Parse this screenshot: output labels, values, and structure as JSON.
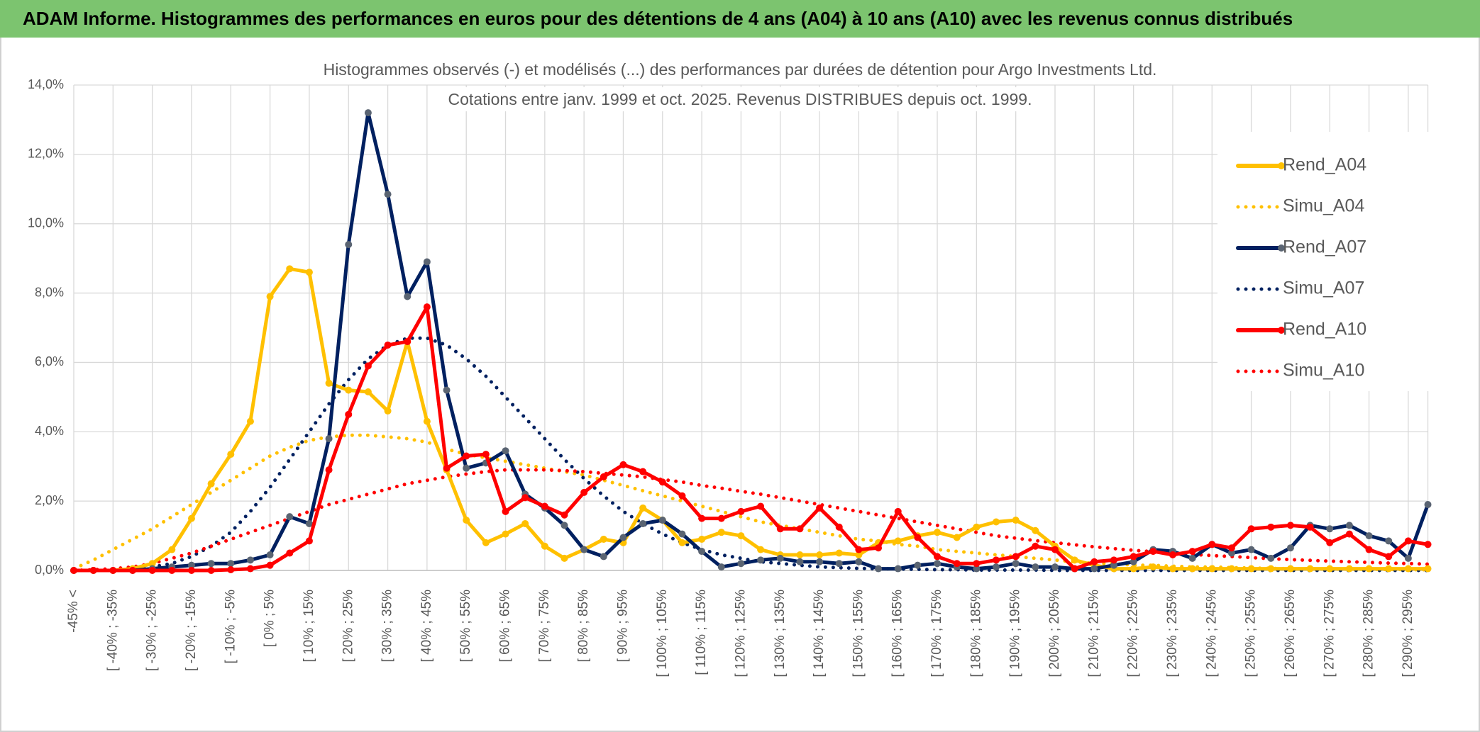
{
  "header": "ADAM Informe. Histogrammes des performances en euros pour des détentions de 4 ans (A04) à 10 ans (A10) avec les revenus connus distribués",
  "chart_data": {
    "type": "line",
    "title": "Histogrammes observés (-) et modélisés (...) des performances par durées de détention pour Argo Investments Ltd.",
    "subtitle": "Cotations entre janv. 1999 et oct. 2025. Revenus DISTRIBUES depuis oct. 1999.",
    "categories": [
      "-45% <",
      null,
      "[ -40% ; -35%",
      null,
      "[ -30% ; -25%",
      null,
      "[ -20% ; -15%",
      null,
      "[ -10% ; -5%",
      null,
      "[ 0% ; 5%",
      null,
      "[ 10% ; 15%",
      null,
      "[ 20% ; 25%",
      null,
      "[ 30% ; 35%",
      null,
      "[ 40% ; 45%",
      null,
      "[ 50% ; 55%",
      null,
      "[ 60% ; 65%",
      null,
      "[ 70% ; 75%",
      null,
      "[ 80% ; 85%",
      null,
      "[ 90% ; 95%",
      null,
      "[ 100% ; 105%",
      null,
      "[ 110% ; 115%",
      null,
      "[ 120% ; 125%",
      null,
      "[ 130% ; 135%",
      null,
      "[ 140% ; 145%",
      null,
      "[ 150% ; 155%",
      null,
      "[ 160% ; 165%",
      null,
      "[ 170% ; 175%",
      null,
      "[ 180% ; 185%",
      null,
      "[ 190% ; 195%",
      null,
      "[ 200% ; 205%",
      null,
      "[ 210% ; 215%",
      null,
      "[ 220% ; 225%",
      null,
      "[ 230% ; 235%",
      null,
      "[ 240% ; 245%",
      null,
      "[ 250% ; 255%",
      null,
      "[ 260% ; 265%",
      null,
      "[ 270% ; 275%",
      null,
      "[ 280% ; 285%",
      null,
      "[ 290% ; 295%",
      null
    ],
    "series": [
      {
        "name": "Rend_A04",
        "color": "#FFC000",
        "style": "solid",
        "marker_color": "#FFC000",
        "values": [
          0,
          0,
          0,
          0.05,
          0.2,
          0.6,
          1.5,
          2.5,
          3.35,
          4.3,
          7.9,
          8.7,
          8.6,
          5.4,
          5.2,
          5.15,
          4.6,
          6.6,
          4.3,
          2.9,
          1.45,
          0.8,
          1.05,
          1.35,
          0.7,
          0.35,
          0.6,
          0.9,
          0.8,
          1.8,
          1.45,
          0.8,
          0.9,
          1.1,
          1.0,
          0.6,
          0.45,
          0.45,
          0.45,
          0.5,
          0.45,
          0.8,
          0.85,
          1.0,
          1.1,
          0.95,
          1.25,
          1.4,
          1.45,
          1.15,
          0.7,
          0.3,
          0.15,
          0.05,
          0.05,
          0.1,
          0.05,
          0.05,
          0.05,
          0.05,
          0.05,
          0.05,
          0.05,
          0.05,
          0.05,
          0.05,
          0.05,
          0.05,
          0.05,
          0.05
        ]
      },
      {
        "name": "Simu_A04",
        "color": "#FFC000",
        "style": "dotted",
        "values": [
          0.05,
          0.3,
          0.6,
          0.9,
          1.2,
          1.55,
          1.9,
          2.25,
          2.6,
          2.95,
          3.3,
          3.55,
          3.75,
          3.85,
          3.9,
          3.9,
          3.85,
          3.8,
          3.7,
          3.5,
          3.35,
          3.25,
          3.15,
          3.05,
          2.95,
          2.85,
          2.75,
          2.6,
          2.45,
          2.3,
          2.15,
          2.0,
          1.85,
          1.7,
          1.55,
          1.4,
          1.3,
          1.2,
          1.1,
          1.0,
          0.9,
          0.85,
          0.75,
          0.7,
          0.6,
          0.55,
          0.5,
          0.45,
          0.4,
          0.35,
          0.3,
          0.25,
          0.2,
          0.2,
          0.15,
          0.15,
          0.12,
          0.1,
          0.1,
          0.08,
          0.07,
          0.06,
          0.05,
          0.05,
          0.04,
          0.04,
          0.03,
          0.03,
          0.02,
          0.02
        ]
      },
      {
        "name": "Rend_A07",
        "color": "#002060",
        "style": "solid",
        "marker_color": "#5A6472",
        "values": [
          0,
          0,
          0,
          0,
          0.05,
          0.1,
          0.15,
          0.2,
          0.2,
          0.3,
          0.45,
          1.55,
          1.35,
          3.8,
          9.4,
          13.2,
          10.85,
          7.9,
          8.9,
          5.2,
          2.95,
          3.1,
          3.45,
          2.2,
          1.8,
          1.3,
          0.6,
          0.4,
          0.95,
          1.35,
          1.45,
          1.05,
          0.55,
          0.1,
          0.2,
          0.3,
          0.35,
          0.25,
          0.25,
          0.2,
          0.25,
          0.05,
          0.05,
          0.15,
          0.2,
          0.1,
          0.05,
          0.1,
          0.2,
          0.1,
          0.1,
          0.05,
          0.05,
          0.15,
          0.25,
          0.6,
          0.55,
          0.35,
          0.75,
          0.5,
          0.6,
          0.35,
          0.65,
          1.3,
          1.2,
          1.3,
          1.0,
          0.85,
          0.35,
          1.9
        ]
      },
      {
        "name": "Simu_A07",
        "color": "#002060",
        "style": "dotted",
        "values": [
          0,
          0,
          0.02,
          0.05,
          0.1,
          0.2,
          0.4,
          0.7,
          1.1,
          1.7,
          2.4,
          3.2,
          4.0,
          4.8,
          5.5,
          6.1,
          6.5,
          6.7,
          6.7,
          6.5,
          6.1,
          5.6,
          5.0,
          4.4,
          3.8,
          3.2,
          2.65,
          2.15,
          1.7,
          1.35,
          1.05,
          0.8,
          0.6,
          0.45,
          0.35,
          0.25,
          0.2,
          0.15,
          0.1,
          0.08,
          0.06,
          0.05,
          0.04,
          0.03,
          0.02,
          0.02,
          0.01,
          0.01,
          0.01,
          0.01,
          0,
          0,
          0,
          0,
          0,
          0,
          0,
          0,
          0,
          0,
          0,
          0,
          0,
          0,
          0,
          0,
          0,
          0,
          0,
          0
        ]
      },
      {
        "name": "Rend_A10",
        "color": "#FF0000",
        "style": "solid",
        "marker_color": "#FF0000",
        "values": [
          0,
          0,
          0,
          0,
          0,
          0,
          0,
          0,
          0.02,
          0.05,
          0.15,
          0.5,
          0.85,
          2.9,
          4.5,
          5.9,
          6.5,
          6.6,
          7.6,
          2.95,
          3.3,
          3.35,
          1.7,
          2.1,
          1.85,
          1.6,
          2.25,
          2.7,
          3.05,
          2.85,
          2.55,
          2.15,
          1.5,
          1.5,
          1.7,
          1.85,
          1.2,
          1.2,
          1.8,
          1.25,
          0.6,
          0.65,
          1.7,
          0.95,
          0.4,
          0.2,
          0.2,
          0.3,
          0.4,
          0.7,
          0.6,
          0.05,
          0.25,
          0.3,
          0.4,
          0.55,
          0.45,
          0.55,
          0.75,
          0.65,
          1.2,
          1.25,
          1.3,
          1.25,
          0.8,
          1.05,
          0.6,
          0.4,
          0.85,
          0.75
        ]
      },
      {
        "name": "Simu_A10",
        "color": "#FF0000",
        "style": "dotted",
        "values": [
          0,
          0.02,
          0.05,
          0.1,
          0.2,
          0.35,
          0.5,
          0.7,
          0.9,
          1.1,
          1.3,
          1.5,
          1.7,
          1.9,
          2.05,
          2.2,
          2.35,
          2.5,
          2.6,
          2.7,
          2.78,
          2.85,
          2.9,
          2.9,
          2.9,
          2.88,
          2.85,
          2.8,
          2.75,
          2.7,
          2.62,
          2.55,
          2.45,
          2.37,
          2.28,
          2.2,
          2.1,
          2.0,
          1.9,
          1.8,
          1.7,
          1.6,
          1.5,
          1.4,
          1.3,
          1.2,
          1.1,
          1.0,
          0.93,
          0.86,
          0.8,
          0.74,
          0.68,
          0.63,
          0.58,
          0.54,
          0.5,
          0.46,
          0.43,
          0.4,
          0.37,
          0.34,
          0.31,
          0.29,
          0.27,
          0.25,
          0.23,
          0.21,
          0.2,
          0.18
        ]
      }
    ],
    "ylim": [
      0,
      14
    ],
    "yticks": [
      {
        "value": 0,
        "label": "0,0%"
      },
      {
        "value": 2,
        "label": "2,0%"
      },
      {
        "value": 4,
        "label": "4,0%"
      },
      {
        "value": 6,
        "label": "6,0%"
      },
      {
        "value": 8,
        "label": "8,0%"
      },
      {
        "value": 10,
        "label": "10,0%"
      },
      {
        "value": 12,
        "label": "12,0%"
      },
      {
        "value": 14,
        "label": "14,0%"
      }
    ],
    "grid": true,
    "legend": "right"
  }
}
